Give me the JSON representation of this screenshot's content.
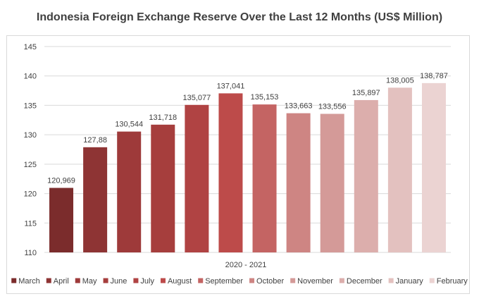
{
  "chart_data": {
    "type": "bar",
    "title": "Indonesia Foreign Exchange Reserve Over the Last 12 Months (US$ Million)",
    "xlabel": "2020 - 2021",
    "ylabel": "",
    "ylim": [
      110,
      145
    ],
    "yticks": [
      110,
      115,
      120,
      125,
      130,
      135,
      140,
      145
    ],
    "grid": true,
    "legend_position": "bottom",
    "categories": [
      "March",
      "April",
      "May",
      "June",
      "July",
      "August",
      "September",
      "October",
      "November",
      "December",
      "January",
      "February"
    ],
    "values": [
      120.969,
      127.88,
      130.544,
      131.718,
      135.077,
      137.041,
      135.153,
      133.663,
      133.556,
      135.897,
      138.005,
      138.787
    ],
    "data_labels": [
      "120,969",
      "127,88",
      "130,544",
      "131,718",
      "135,077",
      "137,041",
      "135,153",
      "133,663",
      "133,556",
      "135,897",
      "138,005",
      "138,787"
    ],
    "colors": [
      "#7b2c2c",
      "#8e3434",
      "#9e3a3a",
      "#a63e3d",
      "#b04343",
      "#bd4b4a",
      "#c46463",
      "#ce8583",
      "#d49a98",
      "#dcaeac",
      "#e3c1bf",
      "#ebd3d2"
    ],
    "grid_color": "#d9d9d9",
    "text_color": "#404040"
  }
}
